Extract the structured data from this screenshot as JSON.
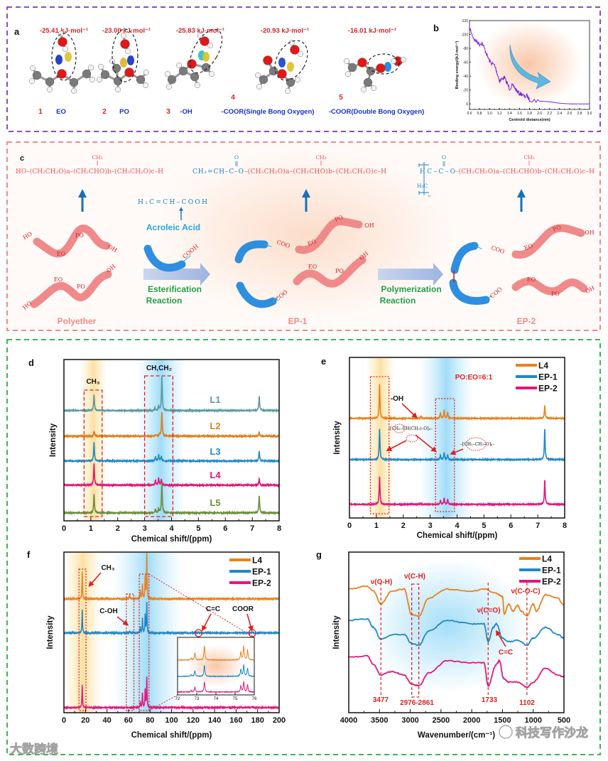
{
  "panel_labels": {
    "a": "a",
    "b": "b",
    "c": "c",
    "d": "d",
    "e": "e",
    "f": "f",
    "g": "g"
  },
  "panel_a": {
    "energies": [
      "-25.41 kJ·mol⁻¹",
      "-23.00 kJ·mol⁻¹",
      "-25.83 kJ·mol⁻¹",
      "-20.93 kJ·mol⁻¹",
      "-16.01 kJ·mol⁻¹"
    ],
    "numbers": [
      "1",
      "2",
      "3",
      "4",
      "5"
    ],
    "groups": [
      "EO",
      "PO",
      "-OH",
      "-COOR(Single Bong Oxygen)",
      "-COOR(Double Bong Oxygen)"
    ]
  },
  "panel_c": {
    "formula_polyether": "HO–(CH₂CH₂O)a–(CH₂CHO)b–(CH₂CH₂O)c–H",
    "formula_ep1_head": "CH₂=CH–C–O",
    "formula_ep1_tail": "–(CH₂CH₂O)a–(CH₂CHO)b–(CH₂CH₂O)c–H",
    "formula_ep2_head": "HC–C–O",
    "formula_ep2_tail": "–(CH₂CH₂O)a–(CH₂CHO)b–(CH₂CH₂O)c–H",
    "ch3": "CH₃",
    "carbonyl_o": "O",
    "h2c": "H₂C",
    "n": "n",
    "acid_formula": "H₂C=CH–COOH",
    "acid_name": "Acroleic Acid",
    "step1": [
      "Esterification",
      "Reaction"
    ],
    "step2": [
      "Polymerization",
      "Reaction"
    ],
    "products": [
      "Polyether",
      "EP-1",
      "EP-2"
    ],
    "chain_labels": {
      "ho": "HO",
      "oh": "OH",
      "eo": "EO",
      "po": "PO",
      "coo": "COO",
      "cooh": "COOH"
    }
  },
  "chart_data": [
    {
      "panel": "b",
      "type": "line",
      "xlabel": "Centroid distance(nm)",
      "ylabel": "Binding energy/(kJ·mol⁻¹)",
      "xlim": [
        0.6,
        3.0
      ],
      "ylim": [
        8,
        -120
      ],
      "xtick_labels": [
        "0.6",
        "0.8",
        "1.0",
        "1.2",
        "1.4",
        "1.6",
        "1.8",
        "2.0",
        "2.2",
        "2.4",
        "2.6",
        "2.8",
        "3.0"
      ],
      "ytick_labels": [
        "-120",
        "-100",
        "-80",
        "-60",
        "-40",
        "-20",
        "0"
      ],
      "color": "#7a22e0",
      "x": [
        0.6,
        0.65,
        0.7,
        0.75,
        0.8,
        0.85,
        0.9,
        0.95,
        1.0,
        1.05,
        1.1,
        1.15,
        1.2,
        1.25,
        1.3,
        1.35,
        1.4,
        1.45,
        1.5,
        1.55,
        1.6,
        1.65,
        1.7,
        1.75,
        1.8,
        1.9,
        2.0,
        2.2,
        2.4,
        2.6,
        2.8,
        3.0
      ],
      "y": [
        -110,
        -100,
        -92,
        -90,
        -86,
        -88,
        -80,
        -70,
        -62,
        -58,
        -56,
        -45,
        -33,
        -36,
        -38,
        -30,
        -22,
        -26,
        -24,
        -18,
        -15,
        -14,
        -10,
        -12,
        -6,
        -5,
        -4,
        -3,
        -1,
        0,
        0,
        0
      ]
    },
    {
      "panel": "d",
      "type": "line",
      "xlabel": "Chemical shift/(ppm)",
      "ylabel": "Intensity",
      "xlim": [
        0,
        8
      ],
      "xtick_labels": [
        "0",
        "1",
        "2",
        "3",
        "4",
        "5",
        "6",
        "7",
        "8"
      ],
      "annotations": {
        "ch3": "CH₃",
        "ch_ch2": "CH,CH₂"
      },
      "series": [
        {
          "name": "L1",
          "color": "#5a9aa2",
          "peaks": [
            [
              1.12,
              22
            ],
            [
              3.38,
              4
            ],
            [
              3.52,
              6
            ],
            [
              3.64,
              48
            ],
            [
              7.26,
              20
            ]
          ]
        },
        {
          "name": "L2",
          "color": "#e07d1c",
          "peaks": [
            [
              1.12,
              7
            ],
            [
              3.4,
              2
            ],
            [
              3.55,
              3
            ],
            [
              3.64,
              33
            ],
            [
              7.26,
              6
            ]
          ]
        },
        {
          "name": "L3",
          "color": "#1f8bc8",
          "peaks": [
            [
              1.12,
              26
            ],
            [
              3.4,
              6
            ],
            [
              3.52,
              9
            ],
            [
              3.62,
              7
            ],
            [
              7.26,
              14
            ]
          ]
        },
        {
          "name": "L4",
          "color": "#e0157a",
          "peaks": [
            [
              1.12,
              30
            ],
            [
              3.4,
              7
            ],
            [
              3.52,
              10
            ],
            [
              3.62,
              8
            ],
            [
              7.26,
              9
            ]
          ]
        },
        {
          "name": "L5",
          "color": "#6b8e3a",
          "peaks": [
            [
              1.12,
              26
            ],
            [
              3.4,
              5
            ],
            [
              3.52,
              6
            ],
            [
              3.64,
              43
            ],
            [
              7.26,
              24
            ]
          ]
        }
      ]
    },
    {
      "panel": "e",
      "type": "line",
      "xlabel": "Chemical shift/(ppm)",
      "ylabel": "Intensity",
      "xlim": [
        0,
        8
      ],
      "xtick_labels": [
        "0",
        "1",
        "2",
        "3",
        "4",
        "5",
        "6",
        "7",
        "8"
      ],
      "annotations": {
        "ratio": "PO:EO=6:1",
        "oh": "-OH",
        "po_unit": "–[CH₂–CH(CH₃)–O]ₙ–",
        "eo_unit": "–[CH₂–CH₂–O]ₙ–"
      },
      "legend": "top-right",
      "series": [
        {
          "name": "L4",
          "color": "#e8821e",
          "peaks": [
            [
              1.12,
              48
            ],
            [
              2.65,
              3
            ],
            [
              3.38,
              8
            ],
            [
              3.52,
              12
            ],
            [
              3.65,
              9
            ],
            [
              7.26,
              18
            ]
          ]
        },
        {
          "name": "EP-1",
          "color": "#2088c8",
          "peaks": [
            [
              1.12,
              43
            ],
            [
              3.38,
              6
            ],
            [
              3.52,
              10
            ],
            [
              3.65,
              7
            ],
            [
              7.26,
              42
            ]
          ]
        },
        {
          "name": "EP-2",
          "color": "#e2187f",
          "peaks": [
            [
              1.12,
              39
            ],
            [
              2.65,
              1
            ],
            [
              3.38,
              6
            ],
            [
              3.52,
              9
            ],
            [
              3.65,
              7
            ],
            [
              7.26,
              34
            ]
          ]
        }
      ]
    },
    {
      "panel": "f",
      "type": "line",
      "xlabel": "Chemical shift/(ppm)",
      "ylabel": "Intensity",
      "xlim": [
        0,
        200
      ],
      "xtick_labels": [
        "0",
        "20",
        "40",
        "60",
        "80",
        "100",
        "120",
        "140",
        "160",
        "180",
        "200"
      ],
      "annotations": {
        "ch3": "CH₃",
        "c_oh": "C-OH",
        "c_c": "C=C",
        "coor": "COOR"
      },
      "legend": "top-right",
      "series": [
        {
          "name": "L4",
          "color": "#e8821e",
          "peaks": [
            [
              17,
              38
            ],
            [
              61,
              6
            ],
            [
              71,
              12
            ],
            [
              73,
              20
            ],
            [
              75.5,
              30
            ],
            [
              77,
              63
            ]
          ]
        },
        {
          "name": "EP-1",
          "color": "#2088c8",
          "peaks": [
            [
              17,
              33
            ],
            [
              61,
              3
            ],
            [
              71,
              8
            ],
            [
              73,
              20
            ],
            [
              75.5,
              25
            ],
            [
              77,
              42
            ],
            [
              125,
              1.5
            ],
            [
              175,
              1.5
            ]
          ]
        },
        {
          "name": "EP-2",
          "color": "#e2187f",
          "peaks": [
            [
              17,
              32
            ],
            [
              71,
              8
            ],
            [
              73,
              20
            ],
            [
              75.5,
              25
            ],
            [
              77,
              42
            ],
            [
              175,
              2
            ]
          ]
        }
      ],
      "inset": {
        "xlim": [
          72,
          76
        ],
        "xtick_labels": [
          "72",
          "73",
          "74",
          "75",
          "76"
        ],
        "series": [
          {
            "name": "L4",
            "peaks": [
              [
                72.7,
                4
              ],
              [
                72.9,
                14
              ],
              [
                73.4,
                28
              ],
              [
                75.3,
                16
              ],
              [
                75.45,
                28
              ],
              [
                75.65,
                20
              ]
            ]
          },
          {
            "name": "EP-1",
            "peaks": [
              [
                72.7,
                3
              ],
              [
                72.9,
                11
              ],
              [
                73.4,
                22
              ],
              [
                75.3,
                14
              ],
              [
                75.45,
                23
              ],
              [
                75.65,
                16
              ]
            ]
          },
          {
            "name": "EP-2",
            "peaks": [
              [
                72.7,
                3
              ],
              [
                72.9,
                10
              ],
              [
                73.4,
                20
              ],
              [
                75.3,
                12
              ],
              [
                75.45,
                20
              ],
              [
                75.65,
                14
              ]
            ]
          }
        ]
      }
    },
    {
      "panel": "g",
      "type": "line",
      "xlabel": "Wavenumber/(cm⁻¹)",
      "ylabel": "Intensity",
      "xlim": [
        4000,
        500
      ],
      "xtick_labels": [
        "4000",
        "3500",
        "3000",
        "2500",
        "2000",
        "1500",
        "1000",
        "500"
      ],
      "annotations": {
        "oh": "ν(O-H)",
        "ch": "ν(C-H)",
        "co": "ν(C=O)",
        "coc": "ν(C-O-C)",
        "cc": "C=C"
      },
      "marker_labels": [
        "3477",
        "2976-2861",
        "1733",
        "1102"
      ],
      "legend": "top-right",
      "series": [
        {
          "name": "L4",
          "color": "#e8821e",
          "points": [
            [
              4000,
              -2
            ],
            [
              3700,
              2
            ],
            [
              3600,
              -5
            ],
            [
              3477,
              -23
            ],
            [
              3300,
              -5
            ],
            [
              3100,
              -2
            ],
            [
              2976,
              -38
            ],
            [
              2861,
              -40
            ],
            [
              2700,
              -15
            ],
            [
              2400,
              -2
            ],
            [
              2000,
              -5
            ],
            [
              1800,
              -2
            ],
            [
              1600,
              -8
            ],
            [
              1500,
              -13
            ],
            [
              1470,
              -37
            ],
            [
              1400,
              -23
            ],
            [
              1330,
              -33
            ],
            [
              1250,
              -25
            ],
            [
              1200,
              -33
            ],
            [
              1102,
              -40
            ],
            [
              1000,
              -23
            ],
            [
              950,
              -33
            ],
            [
              800,
              -10
            ],
            [
              600,
              -15
            ],
            [
              500,
              -25
            ]
          ]
        },
        {
          "name": "EP-1",
          "color": "#2088c8",
          "points": [
            [
              4000,
              0
            ],
            [
              3700,
              2
            ],
            [
              3600,
              -10
            ],
            [
              3477,
              -27
            ],
            [
              3300,
              -20
            ],
            [
              3100,
              -20
            ],
            [
              2976,
              -33
            ],
            [
              2861,
              -35
            ],
            [
              2700,
              -15
            ],
            [
              2400,
              0
            ],
            [
              2000,
              -5
            ],
            [
              1800,
              -5
            ],
            [
              1733,
              -30
            ],
            [
              1650,
              -10
            ],
            [
              1600,
              -5
            ],
            [
              1500,
              -25
            ],
            [
              1400,
              -30
            ],
            [
              1250,
              -28
            ],
            [
              1102,
              -35
            ],
            [
              1000,
              -25
            ],
            [
              800,
              -10
            ],
            [
              600,
              -20
            ],
            [
              500,
              -25
            ]
          ]
        },
        {
          "name": "EP-2",
          "color": "#e2187f",
          "points": [
            [
              4000,
              0
            ],
            [
              3700,
              2
            ],
            [
              3600,
              -10
            ],
            [
              3477,
              -25
            ],
            [
              3300,
              -20
            ],
            [
              3100,
              -25
            ],
            [
              2976,
              -38
            ],
            [
              2861,
              -40
            ],
            [
              2700,
              -22
            ],
            [
              2400,
              -5
            ],
            [
              2000,
              -8
            ],
            [
              1800,
              -8
            ],
            [
              1733,
              -40
            ],
            [
              1600,
              -10
            ],
            [
              1550,
              -5
            ],
            [
              1480,
              -30
            ],
            [
              1400,
              -35
            ],
            [
              1250,
              -35
            ],
            [
              1102,
              -42
            ],
            [
              1000,
              -35
            ],
            [
              800,
              -15
            ],
            [
              600,
              -25
            ],
            [
              500,
              -28
            ]
          ]
        }
      ]
    }
  ],
  "watermarks": [
    "大数跨境",
    "科技写作沙龙"
  ]
}
